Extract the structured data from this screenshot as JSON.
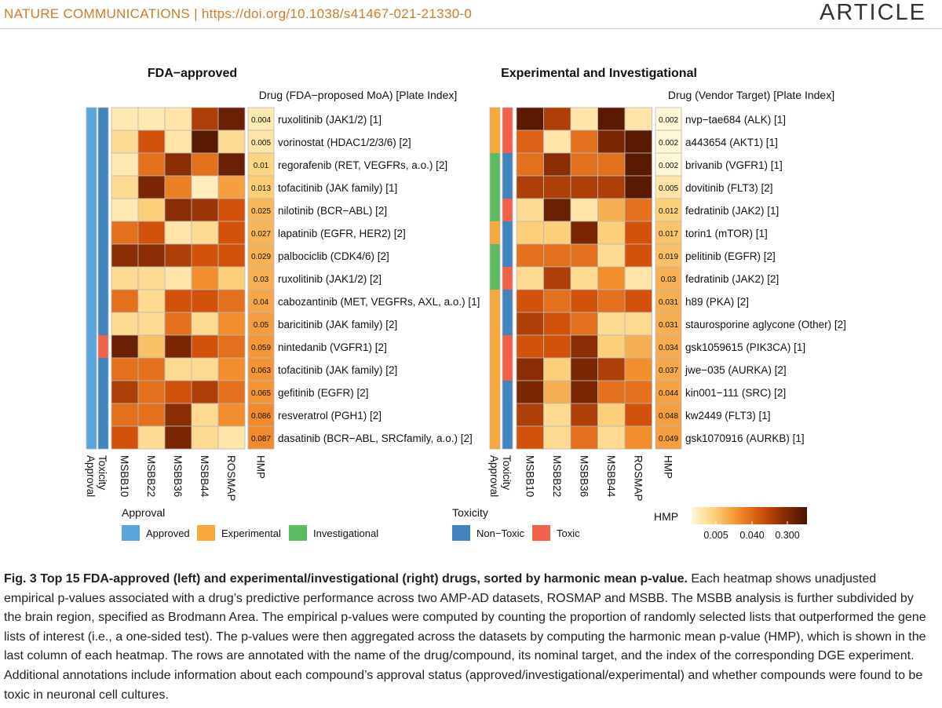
{
  "header": {
    "journal": "NATURE COMMUNICATIONS | https://doi.org/10.1038/s41467-021-21330-0",
    "section": "ARTICLE"
  },
  "colors": {
    "approved": "#5aa6dc",
    "experimental": "#f9a83b",
    "investigational": "#5dbb63",
    "non_toxic": "#4284bd",
    "toxic": "#f2624b",
    "grid": "#b8b8b8"
  },
  "caption": {
    "bold": "Fig. 3 Top 15 FDA-approved (left) and experimental/investigational (right) drugs, sorted by harmonic mean p-value.",
    "text": " Each heatmap shows unadjusted empirical p-values associated with a drug’s predictive performance across two AMP-AD datasets, ROSMAP and MSBB. The MSBB analysis is further subdivided by the brain region, specified as Brodmann Area. The empirical p-values were computed by counting the proportion of randomly selected lists that outperformed the gene lists of interest (i.e., a one-sided test). The p-values were then aggregated across the datasets by computing the harmonic mean p-value (HMP), which is shown in the last column of each heatmap. The rows are annotated with the name of the drug/compound, its nominal target, and the index of the corresponding DGE experiment. Additional annotations include information about each compound’s approval status (approved/investigational/experimental) and whether compounds were found to be toxic in neuronal cell cultures."
  },
  "chart_data": [
    {
      "type": "heatmap",
      "title": "FDA−approved",
      "row_header": "Drug (FDA−proposed MoA) [Plate Index]",
      "annotation_labels": [
        "Approval",
        "Toxicity"
      ],
      "columns": [
        "MSBB10",
        "MSBB22",
        "MSBB36",
        "MSBB44",
        "ROSMAP"
      ],
      "hmp_label": "HMP",
      "rows": [
        {
          "label": "ruxolitinib (JAK1/2) [1]",
          "approval": "Approved",
          "toxicity": "Non−Toxic",
          "values": [
            0.08,
            0.08,
            0.1,
            0.7,
            0.9
          ],
          "hmp": "0.004"
        },
        {
          "label": "vorinostat (HDAC1/2/3/6) [2]",
          "approval": "Approved",
          "toxicity": "Non−Toxic",
          "values": [
            0.15,
            0.6,
            0.1,
            0.95,
            0.15
          ],
          "hmp": "0.005"
        },
        {
          "label": "regorafenib (RET, VEGFRs, a.o.) [2]",
          "approval": "Approved",
          "toxicity": "Non−Toxic",
          "values": [
            0.08,
            0.5,
            0.8,
            0.5,
            0.9
          ],
          "hmp": "0.01"
        },
        {
          "label": "tofacitinib (JAK family) [1]",
          "approval": "Approved",
          "toxicity": "Non−Toxic",
          "values": [
            0.15,
            0.85,
            0.45,
            0.06,
            0.35
          ],
          "hmp": "0.013"
        },
        {
          "label": "nilotinib (BCR−ABL) [2]",
          "approval": "Approved",
          "toxicity": "Non−Toxic",
          "values": [
            0.08,
            0.2,
            0.8,
            0.75,
            0.6
          ],
          "hmp": "0.025"
        },
        {
          "label": "lapatinib (EGFR, HER2) [2]",
          "approval": "Approved",
          "toxicity": "Non−Toxic",
          "values": [
            0.5,
            0.6,
            0.1,
            0.15,
            0.6
          ],
          "hmp": "0.027"
        },
        {
          "label": "palbociclib (CDK4/6) [2]",
          "approval": "Approved",
          "toxicity": "Non−Toxic",
          "values": [
            0.8,
            0.8,
            0.7,
            0.6,
            0.6
          ],
          "hmp": "0.029"
        },
        {
          "label": "ruxolitinib (JAK1/2) [2]",
          "approval": "Approved",
          "toxicity": "Non−Toxic",
          "values": [
            0.15,
            0.15,
            0.1,
            0.4,
            0.2
          ],
          "hmp": "0.03"
        },
        {
          "label": "cabozantinib (MET, VEGFRs, AXL, a.o.) [1]",
          "approval": "Approved",
          "toxicity": "Non−Toxic",
          "values": [
            0.5,
            0.15,
            0.6,
            0.6,
            0.5
          ],
          "hmp": "0.04"
        },
        {
          "label": "baricitinib (JAK family) [2]",
          "approval": "Approved",
          "toxicity": "Non−Toxic",
          "values": [
            0.15,
            0.15,
            0.5,
            0.15,
            0.4
          ],
          "hmp": "0.05"
        },
        {
          "label": "nintedanib (VGFR1) [2]",
          "approval": "Approved",
          "toxicity": "Toxic",
          "values": [
            0.9,
            0.25,
            0.85,
            0.6,
            0.5
          ],
          "hmp": "0.059"
        },
        {
          "label": "tofacitinib (JAK family) [2]",
          "approval": "Approved",
          "toxicity": "Non−Toxic",
          "values": [
            0.5,
            0.5,
            0.15,
            0.15,
            0.4
          ],
          "hmp": "0.063"
        },
        {
          "label": "gefitinib (EGFR) [2]",
          "approval": "Approved",
          "toxicity": "Non−Toxic",
          "values": [
            0.7,
            0.5,
            0.6,
            0.7,
            0.5
          ],
          "hmp": "0.065"
        },
        {
          "label": "resveratrol (PGH1) [2]",
          "approval": "Approved",
          "toxicity": "Non−Toxic",
          "values": [
            0.5,
            0.5,
            0.8,
            0.15,
            0.4
          ],
          "hmp": "0.086"
        },
        {
          "label": "dasatinib (BCR−ABL, SRCfamily, a.o.) [2]",
          "approval": "Approved",
          "toxicity": "Non−Toxic",
          "values": [
            0.6,
            0.15,
            0.85,
            0.15,
            0.1
          ],
          "hmp": "0.087"
        }
      ]
    },
    {
      "type": "heatmap",
      "title": "Experimental and Investigational",
      "row_header": "Drug (Vendor Target) [Plate Index]",
      "annotation_labels": [
        "Approval",
        "Toxicity"
      ],
      "columns": [
        "MSBB10",
        "MSBB22",
        "MSBB36",
        "MSBB44",
        "ROSMAP"
      ],
      "hmp_label": "HMP",
      "rows": [
        {
          "label": "nvp−tae684 (ALK) [1]",
          "approval": "Experimental",
          "toxicity": "Toxic",
          "values": [
            0.95,
            0.7,
            0.1,
            0.95,
            0.1
          ],
          "hmp": "0.002"
        },
        {
          "label": "a443654 (AKT1) [1]",
          "approval": "Experimental",
          "toxicity": "Toxic",
          "values": [
            0.55,
            0.1,
            0.5,
            0.85,
            0.95
          ],
          "hmp": "0.002"
        },
        {
          "label": "brivanib (VGFR1) [1]",
          "approval": "Investigational",
          "toxicity": "Non−Toxic",
          "values": [
            0.5,
            0.8,
            0.5,
            0.5,
            0.95
          ],
          "hmp": "0.002"
        },
        {
          "label": "dovitinib (FLT3) [2]",
          "approval": "Investigational",
          "toxicity": "Non−Toxic",
          "values": [
            0.7,
            0.7,
            0.7,
            0.7,
            0.95
          ],
          "hmp": "0.005"
        },
        {
          "label": "fedratinib (JAK2) [1]",
          "approval": "Investigational",
          "toxicity": "Toxic",
          "values": [
            0.15,
            0.9,
            0.1,
            0.3,
            0.5
          ],
          "hmp": "0.012"
        },
        {
          "label": "torin1 (mTOR) [1]",
          "approval": "Experimental",
          "toxicity": "Non−Toxic",
          "values": [
            0.2,
            0.2,
            0.85,
            0.2,
            0.6
          ],
          "hmp": "0.017"
        },
        {
          "label": "pelitinib (EGFR) [2]",
          "approval": "Investigational",
          "toxicity": "Non−Toxic",
          "values": [
            0.5,
            0.5,
            0.5,
            0.15,
            0.6
          ],
          "hmp": "0.019"
        },
        {
          "label": "fedratinib (JAK2) [2]",
          "approval": "Investigational",
          "toxicity": "Toxic",
          "values": [
            0.15,
            0.7,
            0.15,
            0.4,
            0.1
          ],
          "hmp": "0.03"
        },
        {
          "label": "h89 (PKA) [2]",
          "approval": "Experimental",
          "toxicity": "Non−Toxic",
          "values": [
            0.6,
            0.5,
            0.6,
            0.5,
            0.6
          ],
          "hmp": "0.031"
        },
        {
          "label": "staurosporine aglycone (Other) [2]",
          "approval": "Experimental",
          "toxicity": "Non−Toxic",
          "values": [
            0.7,
            0.6,
            0.5,
            0.15,
            0.15
          ],
          "hmp": "0.031"
        },
        {
          "label": "gsk1059615 (PIK3CA) [1]",
          "approval": "Experimental",
          "toxicity": "Toxic",
          "values": [
            0.6,
            0.6,
            0.8,
            0.2,
            0.3
          ],
          "hmp": "0.034"
        },
        {
          "label": "jwe−035 (AURKA) [2]",
          "approval": "Experimental",
          "toxicity": "Toxic",
          "values": [
            0.8,
            0.2,
            0.85,
            0.7,
            0.4
          ],
          "hmp": "0.037"
        },
        {
          "label": "kin001−111 (SRC) [2]",
          "approval": "Experimental",
          "toxicity": "Non−Toxic",
          "values": [
            0.85,
            0.3,
            0.85,
            0.5,
            0.5
          ],
          "hmp": "0.044"
        },
        {
          "label": "kw2449 (FLT3) [1]",
          "approval": "Experimental",
          "toxicity": "Non−Toxic",
          "values": [
            0.7,
            0.15,
            0.7,
            0.2,
            0.6
          ],
          "hmp": "0.048"
        },
        {
          "label": "gsk1070916 (AURKB) [1]",
          "approval": "Experimental",
          "toxicity": "Non−Toxic",
          "values": [
            0.6,
            0.15,
            0.5,
            0.15,
            0.4
          ],
          "hmp": "0.049"
        }
      ]
    }
  ],
  "legend": {
    "approval_title": "Approval",
    "approval_items": [
      {
        "label": "Approved",
        "color": "#5aa6dc"
      },
      {
        "label": "Experimental",
        "color": "#f9a83b"
      },
      {
        "label": "Investigational",
        "color": "#5dbb63"
      }
    ],
    "toxicity_title": "Toxicity",
    "toxicity_items": [
      {
        "label": "Non−Toxic",
        "color": "#4284bd"
      },
      {
        "label": "Toxic",
        "color": "#f2624b"
      }
    ],
    "hmp_title": "HMP",
    "hmp_ticks": [
      "0.005",
      "0.040",
      "0.300"
    ],
    "hmp_gradient": [
      "#fff8d6",
      "#fcd07a",
      "#f28e2e",
      "#d2520c",
      "#8a2c04",
      "#4a1400"
    ]
  }
}
